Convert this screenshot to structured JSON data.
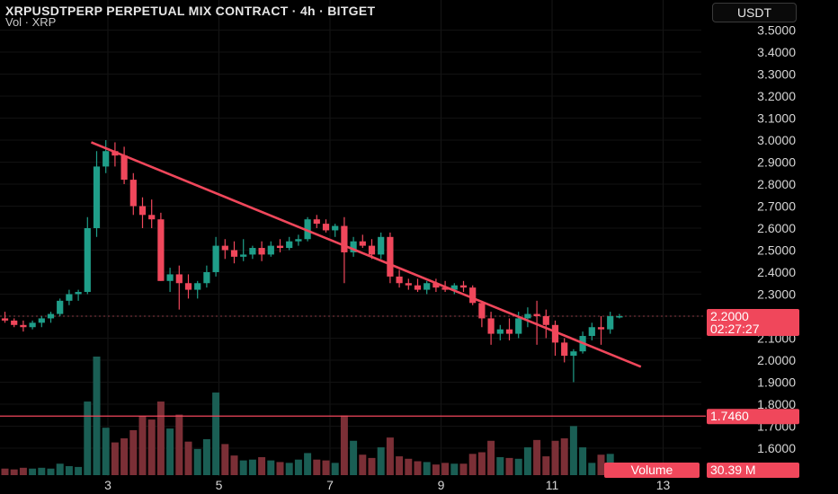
{
  "header": {
    "title": "XRPUSDTPERP PERPETUAL MIX CONTRACT · 4h · BITGET",
    "subtitle": "Vol · XRP"
  },
  "currency_button": "USDT",
  "colors": {
    "background": "#000000",
    "up": "#1f9e89",
    "down": "#f0475b",
    "trendline": "#f0475b",
    "hline": "#f0475b",
    "volume_up": "#1a5e54",
    "volume_down": "#7b2f36"
  },
  "price_axis": {
    "labels": [
      "3.5000",
      "3.4000",
      "3.3000",
      "3.2000",
      "3.1000",
      "3.0000",
      "2.9000",
      "2.8000",
      "2.7000",
      "2.6000",
      "2.5000",
      "2.4000",
      "2.3000",
      "2.1000",
      "2.0000",
      "1.9000",
      "1.8000",
      "1.7000",
      "1.6000"
    ],
    "current_price": "2.2000",
    "countdown": "02:27:27",
    "hline_price": "1.7460",
    "volume_label": "Volume",
    "volume_value": "30.39 M"
  },
  "time_axis": [
    "3",
    "5",
    "7",
    "9",
    "11",
    "13"
  ],
  "chart_data": {
    "type": "candlestick",
    "title": "XRPUSDTPERP PERPETUAL MIX CONTRACT · 4h · BITGET",
    "ylim": [
      1.55,
      3.58
    ],
    "trendline": {
      "from": [
        2.7,
        2.99
      ],
      "to": [
        12.6,
        1.97
      ]
    },
    "horizontal_line": 1.746,
    "current_price": 2.2,
    "candles": [
      [
        2.19,
        2.22,
        2.17,
        2.18
      ],
      [
        2.18,
        2.19,
        2.15,
        2.16
      ],
      [
        2.16,
        2.18,
        2.13,
        2.15
      ],
      [
        2.15,
        2.18,
        2.14,
        2.17
      ],
      [
        2.17,
        2.2,
        2.15,
        2.19
      ],
      [
        2.19,
        2.22,
        2.17,
        2.21
      ],
      [
        2.21,
        2.28,
        2.2,
        2.27
      ],
      [
        2.27,
        2.32,
        2.25,
        2.3
      ],
      [
        2.3,
        2.32,
        2.27,
        2.31
      ],
      [
        2.31,
        2.65,
        2.3,
        2.6
      ],
      [
        2.6,
        2.95,
        2.56,
        2.88
      ],
      [
        2.88,
        3.0,
        2.85,
        2.95
      ],
      [
        2.95,
        2.99,
        2.88,
        2.93
      ],
      [
        2.93,
        2.97,
        2.8,
        2.82
      ],
      [
        2.82,
        2.85,
        2.66,
        2.7
      ],
      [
        2.7,
        2.74,
        2.6,
        2.66
      ],
      [
        2.66,
        2.73,
        2.6,
        2.64
      ],
      [
        2.64,
        2.67,
        2.36,
        2.36
      ],
      [
        2.36,
        2.42,
        2.31,
        2.39
      ],
      [
        2.39,
        2.43,
        2.23,
        2.35
      ],
      [
        2.35,
        2.39,
        2.28,
        2.32
      ],
      [
        2.32,
        2.36,
        2.28,
        2.35
      ],
      [
        2.35,
        2.43,
        2.33,
        2.4
      ],
      [
        2.4,
        2.56,
        2.38,
        2.52
      ],
      [
        2.52,
        2.55,
        2.46,
        2.5
      ],
      [
        2.5,
        2.54,
        2.44,
        2.47
      ],
      [
        2.47,
        2.55,
        2.45,
        2.48
      ],
      [
        2.48,
        2.52,
        2.46,
        2.51
      ],
      [
        2.51,
        2.54,
        2.45,
        2.48
      ],
      [
        2.48,
        2.54,
        2.47,
        2.52
      ],
      [
        2.52,
        2.55,
        2.49,
        2.51
      ],
      [
        2.51,
        2.56,
        2.5,
        2.54
      ],
      [
        2.54,
        2.57,
        2.52,
        2.55
      ],
      [
        2.55,
        2.65,
        2.54,
        2.64
      ],
      [
        2.64,
        2.66,
        2.6,
        2.62
      ],
      [
        2.62,
        2.64,
        2.58,
        2.59
      ],
      [
        2.59,
        2.62,
        2.56,
        2.61
      ],
      [
        2.61,
        2.65,
        2.35,
        2.49
      ],
      [
        2.49,
        2.56,
        2.47,
        2.54
      ],
      [
        2.54,
        2.57,
        2.51,
        2.52
      ],
      [
        2.52,
        2.55,
        2.46,
        2.48
      ],
      [
        2.48,
        2.58,
        2.46,
        2.56
      ],
      [
        2.56,
        2.58,
        2.35,
        2.38
      ],
      [
        2.38,
        2.41,
        2.33,
        2.35
      ],
      [
        2.35,
        2.37,
        2.32,
        2.34
      ],
      [
        2.34,
        2.37,
        2.31,
        2.32
      ],
      [
        2.32,
        2.36,
        2.3,
        2.35
      ],
      [
        2.35,
        2.37,
        2.31,
        2.33
      ],
      [
        2.33,
        2.36,
        2.31,
        2.32
      ],
      [
        2.32,
        2.35,
        2.3,
        2.34
      ],
      [
        2.34,
        2.36,
        2.31,
        2.33
      ],
      [
        2.33,
        2.34,
        2.25,
        2.26
      ],
      [
        2.26,
        2.27,
        2.15,
        2.19
      ],
      [
        2.19,
        2.22,
        2.07,
        2.12
      ],
      [
        2.12,
        2.16,
        2.09,
        2.14
      ],
      [
        2.14,
        2.19,
        2.09,
        2.12
      ],
      [
        2.12,
        2.22,
        2.1,
        2.19
      ],
      [
        2.19,
        2.24,
        2.15,
        2.21
      ],
      [
        2.21,
        2.27,
        2.07,
        2.2
      ],
      [
        2.2,
        2.23,
        2.1,
        2.16
      ],
      [
        2.16,
        2.18,
        2.02,
        2.08
      ],
      [
        2.08,
        2.1,
        1.99,
        2.02
      ],
      [
        2.02,
        2.05,
        1.9,
        2.04
      ],
      [
        2.04,
        2.13,
        2.03,
        2.11
      ],
      [
        2.11,
        2.17,
        2.09,
        2.15
      ],
      [
        2.15,
        2.2,
        2.07,
        2.14
      ],
      [
        2.14,
        2.22,
        2.12,
        2.2
      ],
      [
        2.2,
        2.21,
        2.19,
        2.2
      ]
    ],
    "volume": [
      0.8,
      0.7,
      0.9,
      0.8,
      0.9,
      0.8,
      1.4,
      1.1,
      1.0,
      9.0,
      14.5,
      5.8,
      4.0,
      4.5,
      5.5,
      7.2,
      6.8,
      9.0,
      5.7,
      7.4,
      4.1,
      3.2,
      4.4,
      10.1,
      3.8,
      2.4,
      1.8,
      1.9,
      2.2,
      1.8,
      1.6,
      1.5,
      1.9,
      2.7,
      1.9,
      1.8,
      1.5,
      7.3,
      4.2,
      2.5,
      2.1,
      3.4,
      4.6,
      2.3,
      2.0,
      1.7,
      1.6,
      1.3,
      1.5,
      1.4,
      1.4,
      2.6,
      2.8,
      4.2,
      2.2,
      2.1,
      2.0,
      3.4,
      4.3,
      2.3,
      4.2,
      4.5,
      6.0,
      3.4,
      1.5,
      2.5,
      2.6,
      0.2
    ]
  }
}
